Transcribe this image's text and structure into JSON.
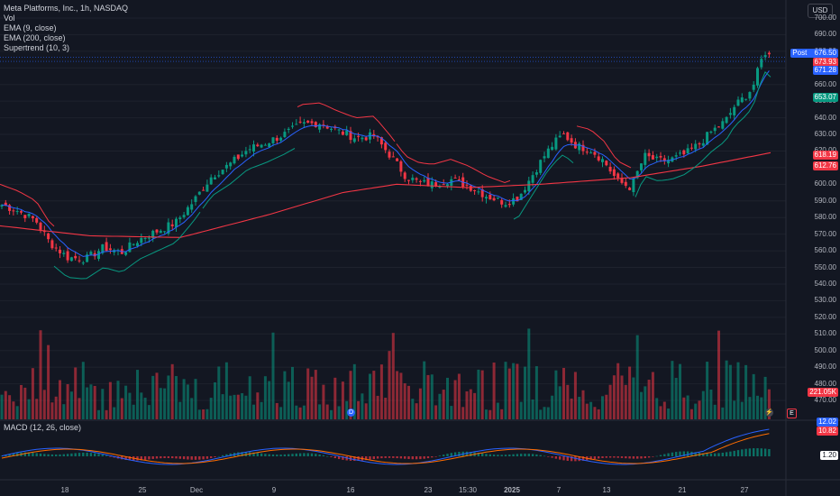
{
  "chart_data": {
    "type": "candlestick",
    "title": "Meta Platforms, Inc., 1h, NASDAQ",
    "indicators": [
      "Vol",
      "EMA (9, close)",
      "EMA (200, close)",
      "Supertrend (10, 3)"
    ],
    "macd_title": "MACD (12, 26, close)",
    "currency": "USD",
    "y_ticks": [
      "700.00",
      "690.00",
      "680.00",
      "670.00",
      "660.00",
      "650.00",
      "640.00",
      "630.00",
      "620.00",
      "610.00",
      "600.00",
      "590.00",
      "580.00",
      "570.00",
      "560.00",
      "550.00",
      "540.00",
      "530.00",
      "520.00",
      "510.00",
      "500.00",
      "490.00",
      "480.00",
      "470.00"
    ],
    "x_ticks": [
      "18",
      "25",
      "Dec",
      "9",
      "16",
      "23",
      "15:30",
      "2025",
      "7",
      "13",
      "21",
      "27"
    ],
    "ylim": [
      465,
      705
    ],
    "price_anchors": [
      [
        0,
        588
      ],
      [
        20,
        584
      ],
      [
        40,
        578
      ],
      [
        55,
        565
      ],
      [
        75,
        556
      ],
      [
        95,
        555
      ],
      [
        115,
        562
      ],
      [
        135,
        559
      ],
      [
        155,
        567
      ],
      [
        175,
        572
      ],
      [
        195,
        577
      ],
      [
        215,
        590
      ],
      [
        235,
        605
      ],
      [
        255,
        612
      ],
      [
        275,
        621
      ],
      [
        295,
        625
      ],
      [
        315,
        630
      ],
      [
        335,
        636
      ],
      [
        355,
        637
      ],
      [
        375,
        632
      ],
      [
        395,
        628
      ],
      [
        415,
        629
      ],
      [
        435,
        616
      ],
      [
        450,
        605
      ],
      [
        465,
        601
      ],
      [
        480,
        600
      ],
      [
        500,
        603
      ],
      [
        520,
        599
      ],
      [
        540,
        593
      ],
      [
        560,
        589
      ],
      [
        575,
        592
      ],
      [
        590,
        605
      ],
      [
        605,
        618
      ],
      [
        615,
        625
      ],
      [
        625,
        630
      ],
      [
        640,
        623
      ],
      [
        655,
        621
      ],
      [
        670,
        614
      ],
      [
        685,
        602
      ],
      [
        700,
        598
      ],
      [
        715,
        617
      ],
      [
        730,
        614
      ],
      [
        745,
        615
      ],
      [
        760,
        618
      ],
      [
        775,
        624
      ],
      [
        790,
        632
      ],
      [
        805,
        638
      ],
      [
        815,
        647
      ],
      [
        825,
        652
      ],
      [
        835,
        658
      ],
      [
        842,
        670
      ],
      [
        848,
        680
      ],
      [
        855,
        676.5
      ]
    ],
    "ema200_anchors": [
      [
        0,
        575
      ],
      [
        100,
        569
      ],
      [
        200,
        568
      ],
      [
        300,
        582
      ],
      [
        380,
        595
      ],
      [
        440,
        600
      ],
      [
        520,
        598
      ],
      [
        600,
        600
      ],
      [
        700,
        604
      ],
      [
        780,
        611
      ],
      [
        855,
        619
      ]
    ],
    "volume_scale_max": "221.05K",
    "price_tags": [
      {
        "label": "Post",
        "value": "676.50",
        "color": "#2962ff"
      },
      {
        "value": "673.93",
        "color": "#f23645"
      },
      {
        "value": "671.28",
        "color": "#2962ff"
      },
      {
        "value": "653.07",
        "color": "#089981"
      },
      {
        "value": "618.19",
        "color": "#f23645"
      },
      {
        "value": "612.76",
        "color": "#f23645"
      },
      {
        "value": "221.05K",
        "color": "#f23645"
      },
      {
        "value": "12.02",
        "color": "#2962ff"
      },
      {
        "value": "10.82",
        "color": "#f23645"
      },
      {
        "value": "1.20",
        "color": "#ffffff"
      }
    ],
    "colors": {
      "up": "#089981",
      "down": "#f23645",
      "ema9": "#2962ff",
      "ema200": "#f23645",
      "bg": "#131722",
      "grid": "#1e222d"
    }
  },
  "ui": {
    "currency_button": "USD",
    "dividend_badge": "D",
    "earnings_badge": "E"
  }
}
